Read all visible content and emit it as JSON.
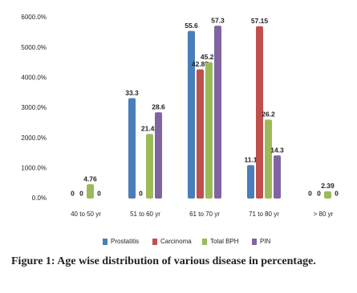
{
  "chart_data": {
    "type": "bar",
    "categories": [
      "40 to 50 yr",
      "51 to 60 yr",
      "61 to 70 yr",
      "71 to 80 yr",
      "> 80 yr"
    ],
    "series": [
      {
        "name": "Prostatitis",
        "color": "#4a7ebb",
        "values": [
          0,
          33.3,
          55.6,
          11.1,
          0
        ]
      },
      {
        "name": "Carcinoma",
        "color": "#c0504d",
        "values": [
          0,
          0,
          42.85,
          57.15,
          0
        ]
      },
      {
        "name": "Total BPH",
        "color": "#9bbb59",
        "values": [
          4.76,
          21.42,
          45.23,
          26.2,
          2.39
        ]
      },
      {
        "name": "PIN",
        "color": "#8064a2",
        "values": [
          0,
          28.6,
          57.3,
          14.3,
          0
        ]
      }
    ],
    "ylim": [
      0,
      60
    ],
    "yticks": [
      {
        "value": 0,
        "label": "0.0%"
      },
      {
        "value": 10,
        "label": "1000.0%"
      },
      {
        "value": 20,
        "label": "2000.0%"
      },
      {
        "value": 30,
        "label": "3000.0%"
      },
      {
        "value": 40,
        "label": "4000.0%"
      },
      {
        "value": 50,
        "label": "5000.0%"
      },
      {
        "value": 60,
        "label": "6000.0%"
      }
    ],
    "legend": "bottom",
    "caption": "Figure 1: Age wise distribution of various disease in percentage."
  }
}
